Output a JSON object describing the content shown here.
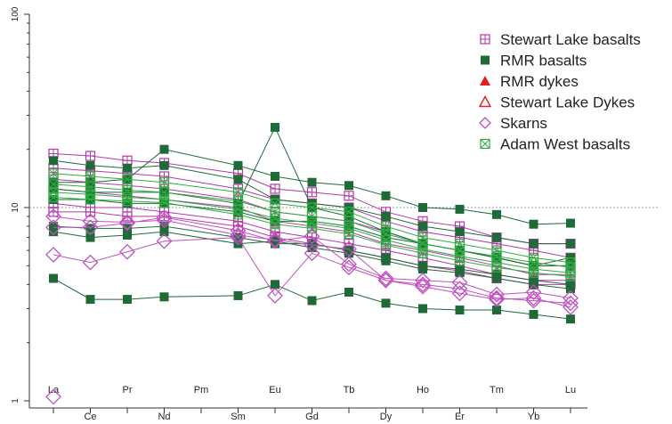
{
  "chart_data": {
    "type": "line",
    "y_scale": "log",
    "ylim": [
      1,
      100
    ],
    "y_ticks": [
      "1",
      "10",
      "100"
    ],
    "x_labels": [
      "La",
      "Ce",
      "Pr",
      "Nd",
      "Pm",
      "Sm",
      "Eu",
      "Gd",
      "Tb",
      "Dy",
      "Ho",
      "Er",
      "Tm",
      "Yb",
      "Lu"
    ],
    "reference_line": 10,
    "legend_placement": "top-right",
    "legend": [
      {
        "key": "slb",
        "name": "Stewart Lake basalts",
        "marker": "square-plus",
        "color": "#b23aa8"
      },
      {
        "key": "rmrb",
        "name": "RMR basalts",
        "marker": "filled-square",
        "color": "#1e6b37"
      },
      {
        "key": "rmrd",
        "name": "RMR dykes",
        "marker": "filled-triangle",
        "color": "#e02020"
      },
      {
        "key": "sld",
        "name": "Stewart Lake Dykes",
        "marker": "open-triangle",
        "color": "#e02020"
      },
      {
        "key": "sk",
        "name": "Skarns",
        "marker": "open-diamond",
        "color": "#c050c0"
      },
      {
        "key": "awb",
        "name": "Adam West basalts",
        "marker": "square-x",
        "color": "#2fae3f"
      }
    ],
    "series": [
      {
        "group": "slb",
        "values": [
          19,
          18.5,
          17.5,
          17,
          null,
          15,
          12.5,
          12,
          11.5,
          9.5,
          8.5,
          8,
          7,
          6.5,
          6.5
        ]
      },
      {
        "group": "slb",
        "values": [
          16,
          15.5,
          15,
          14.5,
          null,
          12.5,
          11,
          10.5,
          10,
          8.5,
          7.5,
          7,
          6.5,
          6,
          5.5
        ]
      },
      {
        "group": "slb",
        "values": [
          14,
          13.5,
          13,
          12.5,
          null,
          11,
          9.5,
          9,
          8.5,
          7.5,
          6.5,
          6,
          5.5,
          5,
          5
        ]
      },
      {
        "group": "slb",
        "values": [
          12.5,
          12,
          11.5,
          11,
          null,
          10,
          8.5,
          8,
          7.5,
          6.5,
          6,
          5.5,
          5,
          4.5,
          4.5
        ]
      },
      {
        "group": "slb",
        "values": [
          10.5,
          10,
          10,
          9.5,
          null,
          8.5,
          7.5,
          7,
          6.5,
          6,
          5.5,
          5,
          4.5,
          4.2,
          4.2
        ]
      },
      {
        "group": "slb",
        "values": [
          9.5,
          9.5,
          9,
          9,
          null,
          8,
          7,
          6.5,
          6,
          5.5,
          5,
          4.7,
          4.3,
          4,
          4
        ]
      },
      {
        "group": "rmrb",
        "values": [
          17.5,
          16.5,
          16,
          16.5,
          null,
          14,
          11,
          10.5,
          10,
          9,
          8,
          7.5,
          7,
          6.5,
          6.5
        ]
      },
      {
        "group": "rmrb",
        "values": [
          13.5,
          13.5,
          14,
          20,
          null,
          16.5,
          14.5,
          13.5,
          13,
          11.5,
          10,
          9.8,
          9.2,
          8.2,
          8.3
        ]
      },
      {
        "group": "rmrb",
        "values": [
          12.5,
          12,
          12,
          12,
          null,
          10.5,
          26,
          10,
          9,
          7.5,
          6.5,
          6,
          5.5,
          5,
          5.5
        ]
      },
      {
        "group": "rmrb",
        "values": [
          11,
          11,
          10.5,
          10.5,
          null,
          9.5,
          8.5,
          8.5,
          8,
          7,
          6.5,
          6,
          5.5,
          5,
          5
        ]
      },
      {
        "group": "rmrb",
        "values": [
          8,
          7.8,
          7.8,
          8,
          null,
          7,
          6.5,
          6.5,
          6,
          5.5,
          5,
          4.8,
          4.5,
          4.2,
          4
        ]
      },
      {
        "group": "rmrb",
        "values": [
          7.5,
          7,
          7.2,
          7.5,
          null,
          6.5,
          6.7,
          6.2,
          5.8,
          5.3,
          4.8,
          4.6,
          4.3,
          4,
          3.8
        ]
      },
      {
        "group": "rmrb",
        "values": [
          4.3,
          3.35,
          3.35,
          3.45,
          null,
          3.5,
          4,
          3.3,
          3.65,
          3.2,
          3,
          2.95,
          2.95,
          2.8,
          2.65
        ]
      },
      {
        "group": "awb",
        "values": [
          15,
          14.5,
          14,
          13.5,
          null,
          12,
          10.5,
          10,
          9.5,
          8,
          7,
          6.5,
          6,
          5.5,
          5.2
        ]
      },
      {
        "group": "awb",
        "values": [
          13.2,
          12.8,
          12.3,
          12,
          null,
          10.8,
          9.5,
          9,
          8.5,
          7.3,
          6.5,
          6,
          5.6,
          5.2,
          4.9
        ]
      },
      {
        "group": "awb",
        "values": [
          12,
          11.7,
          11.3,
          11,
          null,
          9.8,
          8.8,
          8.3,
          7.8,
          6.8,
          6.1,
          5.6,
          5.2,
          4.8,
          4.6
        ]
      },
      {
        "group": "awb",
        "values": [
          11.3,
          11,
          10.8,
          10.6,
          null,
          9.2,
          8.2,
          7.8,
          7.3,
          6.4,
          5.8,
          5.3,
          4.9,
          4.6,
          4.4
        ]
      },
      {
        "group": "sk",
        "values": [
          5.7,
          5.2,
          5.9,
          6.7,
          null,
          7,
          3.5,
          5.8,
          4.9,
          4.2,
          3.9,
          3.6,
          3.35,
          3.4,
          3.05
        ]
      },
      {
        "group": "sk",
        "values": [
          7.9,
          7.9,
          8.3,
          8.9,
          null,
          7.6,
          6.7,
          7.1,
          5.1,
          4.3,
          4.2,
          4.1,
          3.55,
          3.65,
          3.4
        ]
      },
      {
        "group": "sk",
        "values": [
          9,
          8.5,
          8.4,
          8.6,
          null,
          7.2,
          6.8,
          6.4,
          6.1,
          4.2,
          4,
          3.8,
          3.4,
          3.3,
          3.2
        ]
      },
      {
        "group": "sk",
        "values": [
          1.05,
          null,
          null,
          null,
          null,
          null,
          null,
          null,
          null,
          null,
          null,
          null,
          null,
          null,
          null
        ]
      }
    ]
  }
}
